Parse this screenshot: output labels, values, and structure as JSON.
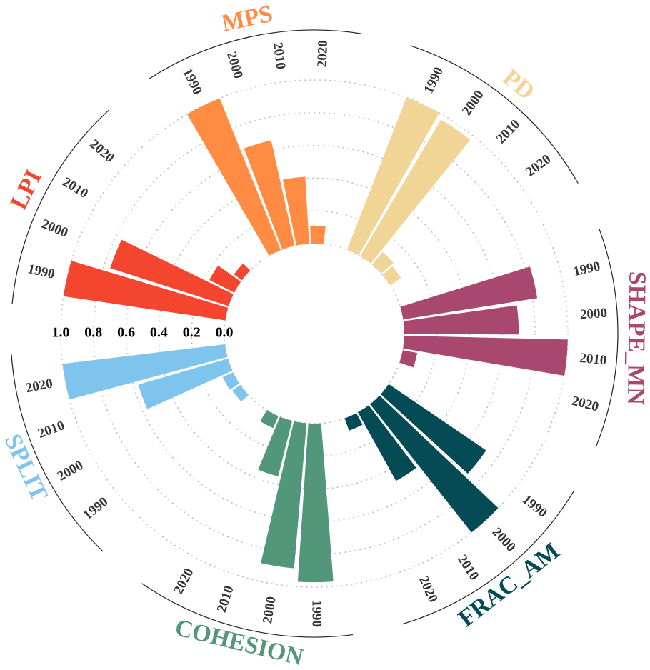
{
  "chart_data": {
    "type": "radial-bar",
    "categories": [
      "1990",
      "2000",
      "2010",
      "2020"
    ],
    "series": [
      {
        "name": "MPS",
        "color": "#ff8c42",
        "values": [
          1.0,
          0.66,
          0.41,
          0.11
        ]
      },
      {
        "name": "PD",
        "color": "#f1d596",
        "values": [
          1.0,
          0.97,
          0.1,
          0.08
        ]
      },
      {
        "name": "SHAPE_MN",
        "color": "#a8486e",
        "values": [
          0.83,
          0.7,
          1.0,
          0.09
        ]
      },
      {
        "name": "FRAC_AM",
        "color": "#054b55",
        "values": [
          0.72,
          1.0,
          0.48,
          0.08
        ]
      },
      {
        "name": "COHESION",
        "color": "#52977a",
        "values": [
          0.97,
          0.89,
          0.35,
          0.08
        ]
      },
      {
        "name": "SPLIT",
        "color": "#7fc4ec",
        "values": [
          0.06,
          0.07,
          0.57,
          1.0
        ]
      },
      {
        "name": "LPI",
        "color": "#f4452f",
        "values": [
          1.0,
          0.76,
          0.17,
          0.06
        ]
      }
    ],
    "ylim": [
      0,
      1
    ],
    "yticks": [
      {
        "value": 0,
        "label": "0.0"
      },
      0.2,
      0.4,
      0.6,
      0.8,
      {
        "value": 1,
        "label": "1.0"
      }
    ],
    "grid": true
  }
}
